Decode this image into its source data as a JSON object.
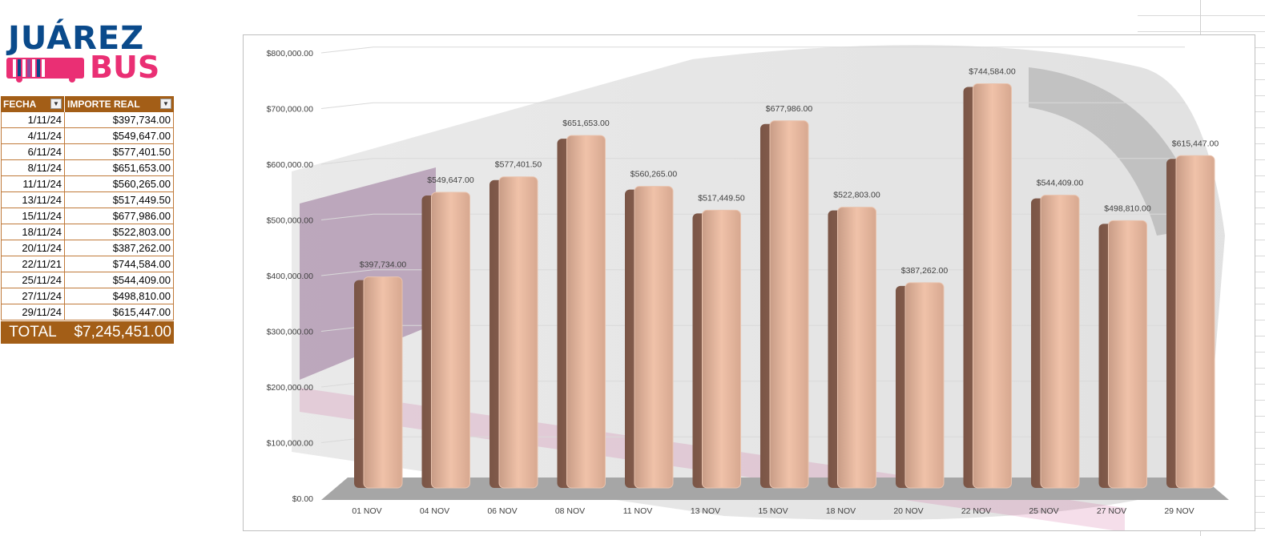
{
  "logo": {
    "line1": "JUÁREZ",
    "line2": "BUS"
  },
  "table": {
    "headers": [
      "FECHA",
      "IMPORTE REAL"
    ],
    "rows": [
      [
        "1/11/24",
        "$397,734.00"
      ],
      [
        "4/11/24",
        "$549,647.00"
      ],
      [
        "6/11/24",
        "$577,401.50"
      ],
      [
        "8/11/24",
        "$651,653.00"
      ],
      [
        "11/11/24",
        "$560,265.00"
      ],
      [
        "13/11/24",
        "$517,449.50"
      ],
      [
        "15/11/24",
        "$677,986.00"
      ],
      [
        "18/11/24",
        "$522,803.00"
      ],
      [
        "20/11/24",
        "$387,262.00"
      ],
      [
        "22/11/21",
        "$744,584.00"
      ],
      [
        "25/11/24",
        "$544,409.00"
      ],
      [
        "27/11/24",
        "$498,810.00"
      ],
      [
        "29/11/24",
        "$615,447.00"
      ]
    ],
    "total_label": "TOTAL",
    "total_value": "$7,245,451.00"
  },
  "chart_data": {
    "type": "bar",
    "categories": [
      "01 NOV",
      "04 NOV",
      "06 NOV",
      "08 NOV",
      "11 NOV",
      "13 NOV",
      "15 NOV",
      "18 NOV",
      "20 NOV",
      "22 NOV",
      "25 NOV",
      "27 NOV",
      "29 NOV"
    ],
    "values": [
      397734.0,
      549647.0,
      577401.5,
      651653.0,
      560265.0,
      517449.5,
      677986.0,
      522803.0,
      387262.0,
      744584.0,
      544409.0,
      498810.0,
      615447.0
    ],
    "data_labels": [
      "$397,734.00",
      "$549,647.00",
      "$577,401.50",
      "$651,653.00",
      "$560,265.00",
      "$517,449.50",
      "$677,986.00",
      "$522,803.00",
      "$387,262.00",
      "$744,584.00",
      "$544,409.00",
      "$498,810.00",
      "$615,447.00"
    ],
    "y_ticks": [
      "$0.00",
      "$100,000.00",
      "$200,000.00",
      "$300,000.00",
      "$400,000.00",
      "$500,000.00",
      "$600,000.00",
      "$700,000.00",
      "$800,000.00"
    ],
    "ylim": [
      0,
      800000
    ],
    "grid": true,
    "bar_color": "#e6b49c",
    "floor_color": "#a6a6a6"
  }
}
